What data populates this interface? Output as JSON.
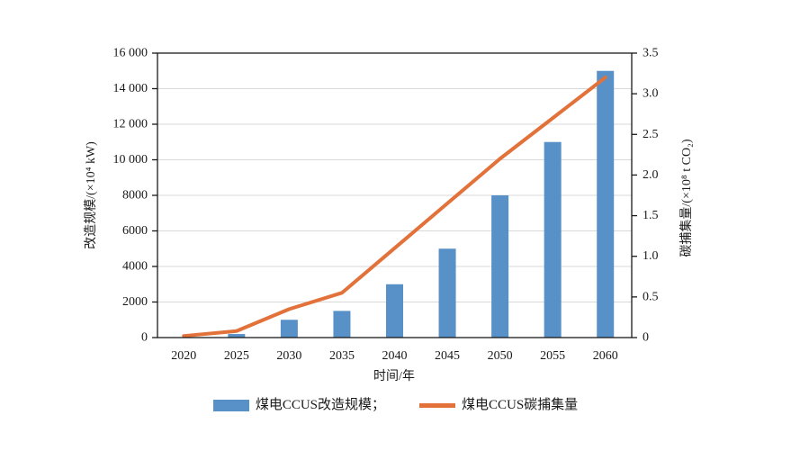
{
  "figure": {
    "background": "#ffffff"
  },
  "colors": {
    "bar": "#5890C8",
    "line": "#E2713A",
    "grid": "#D9D9D9",
    "axis": "#1A1A1A",
    "text": "#1A1A1A"
  },
  "legend": {
    "bar_label": "煤电CCUS改造规模；",
    "line_label": "煤电CCUS碳捕集量"
  },
  "chart_data": {
    "type": "bar",
    "subtype": "combo bar+line, dual y-axis",
    "title": "",
    "categories": [
      "2020",
      "2025",
      "2030",
      "2035",
      "2040",
      "2045",
      "2050",
      "2055",
      "2060"
    ],
    "series": [
      {
        "name": "煤电CCUS改造规模",
        "type": "bar",
        "axis": "left",
        "values": [
          0,
          200,
          1000,
          1500,
          3000,
          5000,
          8000,
          11000,
          15000
        ]
      },
      {
        "name": "煤电CCUS碳捕集量",
        "type": "line",
        "axis": "right",
        "values": [
          0.02,
          0.08,
          0.35,
          0.55,
          1.1,
          1.65,
          2.2,
          2.7,
          3.2
        ]
      }
    ],
    "xlabel": "时间/年",
    "ylabel_left": "改造规模/(×10⁴ kW)",
    "ylabel_right": "碳捕集量/(×10⁸ t CO₂)",
    "left_axis": {
      "min": 0,
      "max": 16000,
      "tick_values": [
        0,
        2000,
        4000,
        6000,
        8000,
        10000,
        12000,
        14000,
        16000
      ],
      "tick_labels": [
        "0",
        "2000",
        "4000",
        "6000",
        "8000",
        "10 000",
        "12 000",
        "14 000",
        "16 000"
      ]
    },
    "right_axis": {
      "min": 0,
      "max": 3.5,
      "tick_values": [
        0,
        0.5,
        1,
        1.5,
        2,
        2.5,
        3,
        3.5
      ],
      "tick_labels": [
        "0",
        "0.5",
        "1.0",
        "1.5",
        "2.0",
        "2.5",
        "3.0",
        "3.5"
      ]
    },
    "grid": true,
    "legend_position": "bottom"
  }
}
